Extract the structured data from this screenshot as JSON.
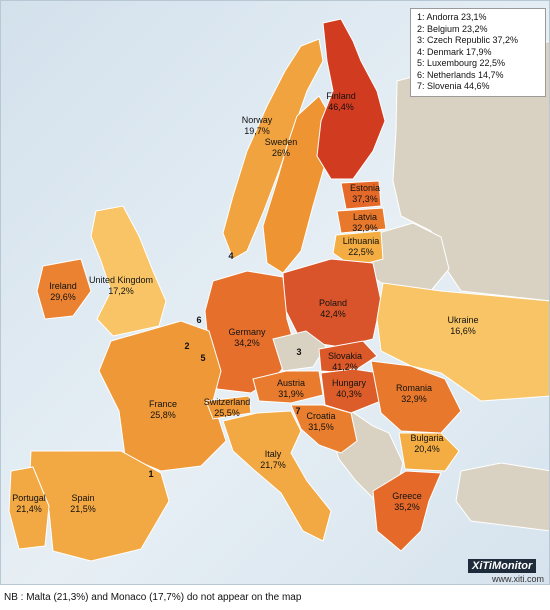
{
  "legend_items": [
    "1: Andorra 23,1%",
    "2: Belgium 23,2%",
    "3: Czech Republic 37,2%",
    "4: Denmark 17,9%",
    "5: Luxembourg 22,5%",
    "6: Netherlands 14,7%",
    "7: Slovenia 44,6%"
  ],
  "countries": {
    "finland": {
      "name": "Finland",
      "value": "46,4%",
      "color": "#d13b1f"
    },
    "norway": {
      "name": "Norway",
      "value": "19,7%",
      "color": "#f0a33e"
    },
    "sweden": {
      "name": "Sweden",
      "value": "26%",
      "color": "#ee9433"
    },
    "estonia": {
      "name": "Estonia",
      "value": "37,3%",
      "color": "#e56a2a"
    },
    "latvia": {
      "name": "Latvia",
      "value": "32,9%",
      "color": "#e8792c"
    },
    "lithuania": {
      "name": "Lithuania",
      "value": "22,5%",
      "color": "#f3ad43"
    },
    "ireland": {
      "name": "Ireland",
      "value": "29,6%",
      "color": "#ea8232"
    },
    "uk": {
      "name": "United Kingdom",
      "value": "17,2%",
      "color": "#f8c465"
    },
    "poland": {
      "name": "Poland",
      "value": "42,4%",
      "color": "#d9542a"
    },
    "ukraine": {
      "name": "Ukraine",
      "value": "16,6%",
      "color": "#f8c465"
    },
    "germany": {
      "name": "Germany",
      "value": "34,2%",
      "color": "#e66f2b"
    },
    "slovakia": {
      "name": "Slovakia",
      "value": "41,2%",
      "color": "#db5829"
    },
    "hungary": {
      "name": "Hungary",
      "value": "40,3%",
      "color": "#dd5d2a"
    },
    "austria": {
      "name": "Austria",
      "value": "31,9%",
      "color": "#e87b2e"
    },
    "romania": {
      "name": "Romania",
      "value": "32,9%",
      "color": "#e8792c"
    },
    "france": {
      "name": "France",
      "value": "25,8%",
      "color": "#ef9837"
    },
    "switzerland": {
      "name": "Switzerland",
      "value": "25,5%",
      "color": "#ef9837"
    },
    "croatia": {
      "name": "Croatia",
      "value": "31,5%",
      "color": "#e97e2e"
    },
    "bulgaria": {
      "name": "Bulgaria",
      "value": "20,4%",
      "color": "#f3ad43"
    },
    "italy": {
      "name": "Italy",
      "value": "21,7%",
      "color": "#f2a843"
    },
    "portugal": {
      "name": "Portugal",
      "value": "21,4%",
      "color": "#f2a843"
    },
    "spain": {
      "name": "Spain",
      "value": "21,5%",
      "color": "#f2a843"
    },
    "greece": {
      "name": "Greece",
      "value": "35,2%",
      "color": "#e56a2a"
    }
  },
  "small_markers": [
    "1",
    "2",
    "3",
    "4",
    "5",
    "6",
    "7"
  ],
  "no_data_color": "#d9d2c2",
  "logo_text": "XiTiMonitor",
  "logo_url": "www.xiti.com",
  "footnote": "NB : Malta (21,3%) and Monaco (17,7%) do not appear on the map"
}
